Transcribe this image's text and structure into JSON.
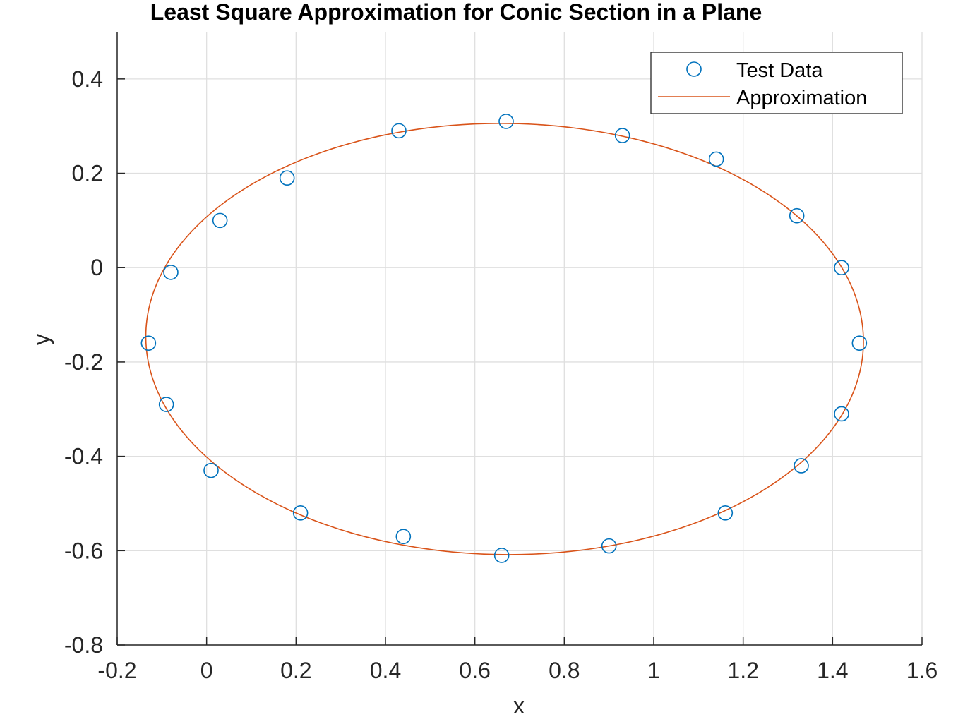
{
  "chart_data": {
    "type": "scatter",
    "title": "Least Square Approximation for Conic Section in a Plane",
    "xlabel": "x",
    "ylabel": "y",
    "xlim": [
      -0.2,
      1.6
    ],
    "ylim": [
      -0.8,
      0.5
    ],
    "xticks": [
      -0.2,
      0,
      0.2,
      0.4,
      0.6,
      0.8,
      1,
      1.2,
      1.4,
      1.6
    ],
    "xtick_labels": [
      "-0.2",
      "0",
      "0.2",
      "0.4",
      "0.6",
      "0.8",
      "1",
      "1.2",
      "1.4",
      "1.6"
    ],
    "yticks": [
      -0.8,
      -0.6,
      -0.4,
      -0.2,
      0,
      0.2,
      0.4
    ],
    "ytick_labels": [
      "-0.8",
      "-0.6",
      "-0.4",
      "-0.2",
      "0",
      "0.2",
      "0.4"
    ],
    "grid": true,
    "legend_position": "top-right",
    "series": [
      {
        "name": "Test Data",
        "kind": "markers",
        "marker": "circle",
        "color": "#0072bd",
        "points": [
          [
            0.67,
            0.31
          ],
          [
            0.93,
            0.28
          ],
          [
            1.14,
            0.23
          ],
          [
            1.32,
            0.11
          ],
          [
            1.42,
            0.0
          ],
          [
            1.46,
            -0.16
          ],
          [
            1.42,
            -0.31
          ],
          [
            1.33,
            -0.42
          ],
          [
            1.16,
            -0.52
          ],
          [
            0.9,
            -0.59
          ],
          [
            0.66,
            -0.61
          ],
          [
            0.44,
            -0.57
          ],
          [
            0.21,
            -0.52
          ],
          [
            0.01,
            -0.43
          ],
          [
            -0.09,
            -0.29
          ],
          [
            -0.13,
            -0.16
          ],
          [
            -0.08,
            -0.01
          ],
          [
            0.03,
            0.1
          ],
          [
            0.18,
            0.19
          ],
          [
            0.43,
            0.29
          ]
        ]
      },
      {
        "name": "Approximation",
        "kind": "line",
        "color": "#d95319",
        "curve": "ellipse",
        "center": [
          0.6665,
          -0.1513
        ],
        "semi_axes": [
          0.8025,
          0.457
        ],
        "angle_deg": -0.55
      }
    ]
  }
}
